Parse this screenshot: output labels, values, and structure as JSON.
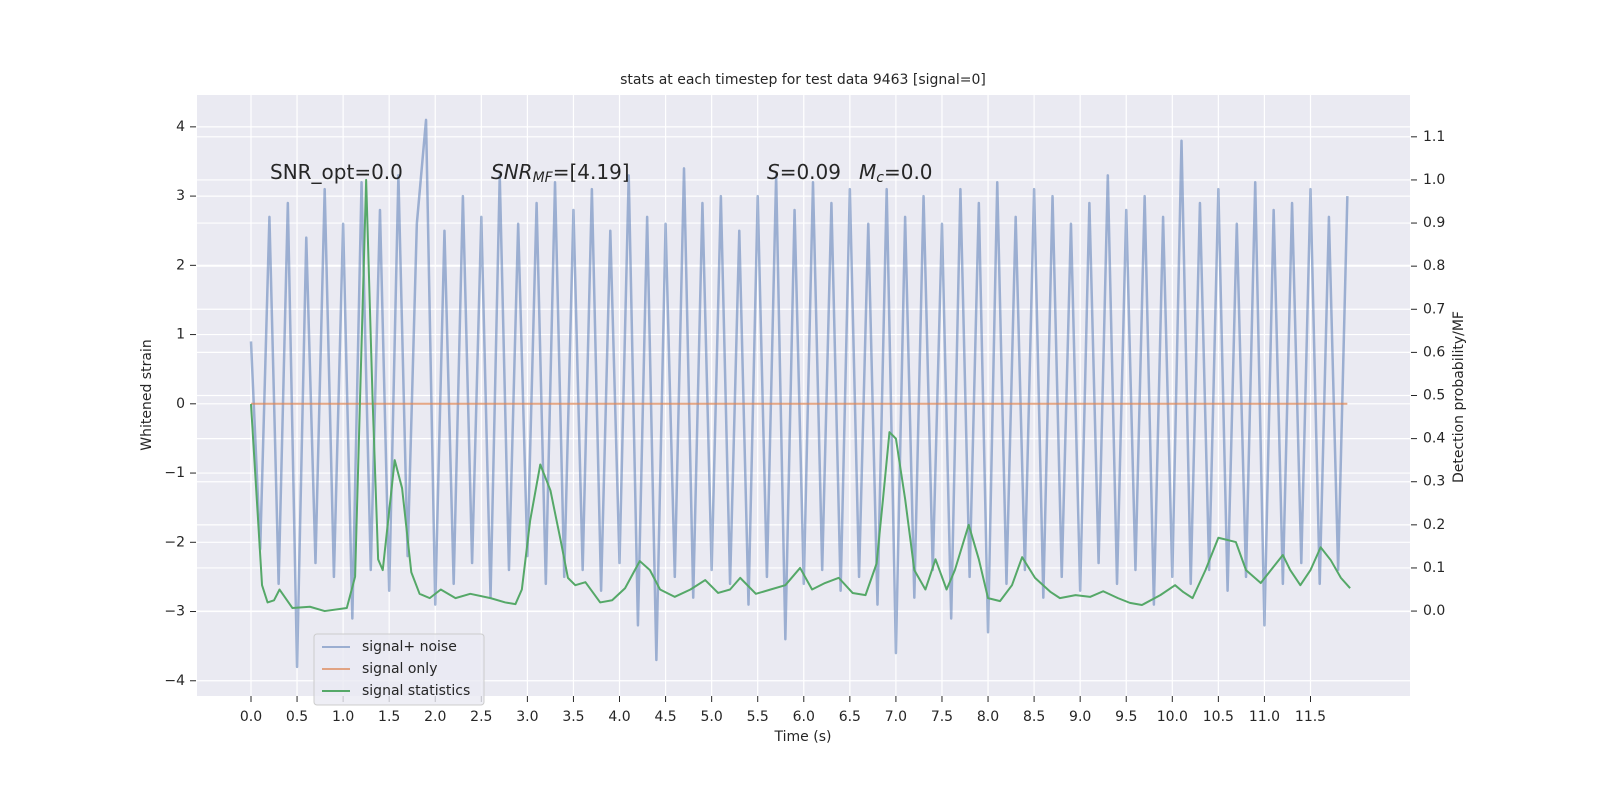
{
  "chart_data": {
    "type": "line",
    "title": "stats at each timestep for test data 9463 [signal=0]",
    "xlabel": "Time (s)",
    "ylabel": "Whitened strain",
    "y2label": "Detection probability/MF",
    "annotations": [
      {
        "text": "SNR_opt=0.0"
      },
      {
        "text": "SNR",
        "sub": "MF",
        "after": "=[4.19]"
      },
      {
        "text": "S",
        "after": "=0.09"
      },
      {
        "text": "M",
        "sub": "c",
        "after": "=0.0"
      }
    ],
    "xlim": [
      -0.586,
      12.58
    ],
    "ylim": [
      -4.22,
      4.46
    ],
    "y2lim": [
      -0.197,
      1.197
    ],
    "xticks": [
      {
        "value": 0,
        "label": "0.0"
      },
      0.5,
      {
        "value": 1,
        "label": "1.0"
      },
      1.5,
      {
        "value": 2,
        "label": "2.0"
      },
      2.5,
      {
        "value": 3,
        "label": "3.0"
      },
      3.5,
      {
        "value": 4,
        "label": "4.0"
      },
      4.5,
      {
        "value": 5,
        "label": "5.0"
      },
      5.5,
      {
        "value": 6,
        "label": "6.0"
      },
      6.5,
      {
        "value": 7,
        "label": "7.0"
      },
      7.5,
      {
        "value": 8,
        "label": "8.0"
      },
      8.5,
      {
        "value": 9,
        "label": "9.0"
      },
      9.5,
      {
        "value": 10,
        "label": "10.0"
      },
      10.5,
      {
        "value": 11,
        "label": "11.0"
      },
      11.5
    ],
    "yticks": [
      {
        "value": -4,
        "label": "−4"
      },
      {
        "value": -3,
        "label": "−3"
      },
      {
        "value": -2,
        "label": "−2"
      },
      {
        "value": -1,
        "label": "−1"
      },
      0,
      1,
      2,
      3,
      4
    ],
    "y2ticks": [
      {
        "value": 0,
        "label": "0.0"
      },
      0.1,
      0.2,
      0.3,
      0.4,
      0.5,
      0.6,
      0.7,
      0.8,
      0.9,
      {
        "value": 1,
        "label": "1.0"
      },
      1.1
    ],
    "grid": true,
    "legend_loc": "lower left",
    "series": [
      {
        "name": "signal+ noise",
        "color": "#4c72b0",
        "opacity": 0.5,
        "x": [
          0,
          0.1,
          0.2,
          0.3,
          0.4,
          0.5,
          0.6,
          0.7,
          0.8,
          0.9,
          1,
          1.1,
          1.2,
          1.3,
          1.4,
          1.5,
          1.6,
          1.7,
          1.8,
          1.9,
          2,
          2.1,
          2.2,
          2.3,
          2.4,
          2.5,
          2.6,
          2.7,
          2.8,
          2.9,
          3,
          3.1,
          3.2,
          3.3,
          3.4,
          3.5,
          3.6,
          3.7,
          3.8,
          3.9,
          4,
          4.1,
          4.2,
          4.3,
          4.4,
          4.5,
          4.6,
          4.7,
          4.8,
          4.9,
          5,
          5.1,
          5.2,
          5.3,
          5.4,
          5.5,
          5.6,
          5.7,
          5.8,
          5.9,
          6,
          6.1,
          6.2,
          6.3,
          6.4,
          6.5,
          6.6,
          6.7,
          6.8,
          6.9,
          7,
          7.1,
          7.2,
          7.3,
          7.4,
          7.5,
          7.6,
          7.7,
          7.8,
          7.9,
          8,
          8.1,
          8.2,
          8.3,
          8.4,
          8.5,
          8.6,
          8.7,
          8.8,
          8.9,
          9,
          9.1,
          9.2,
          9.3,
          9.4,
          9.5,
          9.6,
          9.7,
          9.8,
          9.9,
          10,
          10.1,
          10.2,
          10.3,
          10.4,
          10.5,
          10.6,
          10.7,
          10.8,
          10.9,
          11,
          11.1,
          11.2,
          11.3,
          11.4,
          11.5,
          11.6,
          11.7,
          11.8,
          11.9
        ],
        "values": [
          0.9,
          -2.1,
          2.7,
          -2.6,
          2.9,
          -3.8,
          2.4,
          -2.3,
          3.1,
          -2.5,
          2.6,
          -3.1,
          3.2,
          -2.4,
          2.8,
          -2.7,
          3.3,
          -2.2,
          2.6,
          4.1,
          -2.9,
          2.5,
          -2.6,
          3.0,
          -2.3,
          2.7,
          -2.8,
          3.3,
          -2.4,
          2.6,
          -2.2,
          2.9,
          -2.6,
          3.2,
          -2.5,
          2.8,
          -2.4,
          3.1,
          -2.7,
          2.5,
          -2.3,
          3.3,
          -3.2,
          2.7,
          -3.7,
          2.6,
          -2.5,
          3.4,
          -2.8,
          2.9,
          -2.4,
          3.0,
          -2.6,
          2.5,
          -2.9,
          3.0,
          -2.5,
          3.3,
          -3.4,
          2.8,
          -2.6,
          3.2,
          -2.4,
          2.9,
          -2.7,
          3.1,
          -2.5,
          2.6,
          -2.9,
          3.1,
          -3.6,
          2.7,
          -2.8,
          3.0,
          -2.4,
          2.6,
          -3.1,
          3.1,
          -2.5,
          2.9,
          -3.3,
          3.2,
          -2.6,
          2.7,
          -2.4,
          3.1,
          -2.8,
          3.0,
          -2.5,
          2.6,
          -2.7,
          2.9,
          -2.3,
          3.3,
          -2.6,
          2.8,
          -2.4,
          3.0,
          -2.9,
          2.7,
          -2.5,
          3.8,
          -2.6,
          2.9,
          -2.4,
          3.1,
          -2.7,
          2.6,
          -2.5,
          3.2,
          -3.2,
          2.8,
          -2.6,
          2.9,
          -2.3,
          3.1,
          -2.6,
          2.7,
          -2.4,
          3.0
        ]
      },
      {
        "name": "signal only",
        "color": "#dd8452",
        "opacity": 0.7,
        "x": [
          0,
          11.9
        ],
        "values": [
          0,
          0
        ]
      },
      {
        "name": "signal statistics",
        "color": "#55a868",
        "opacity": 1,
        "axis": "y2",
        "x": [
          0,
          0.12,
          0.18,
          0.25,
          0.31,
          0.45,
          0.64,
          0.8,
          1.04,
          1.13,
          1.25,
          1.32,
          1.38,
          1.43,
          1.56,
          1.64,
          1.74,
          1.83,
          1.94,
          2.06,
          2.22,
          2.38,
          2.6,
          2.76,
          2.87,
          2.94,
          3.03,
          3.14,
          3.25,
          3.36,
          3.44,
          3.52,
          3.63,
          3.79,
          3.92,
          4.06,
          4.22,
          4.33,
          4.44,
          4.6,
          4.77,
          4.93,
          5.07,
          5.2,
          5.31,
          5.48,
          5.64,
          5.8,
          5.96,
          6.09,
          6.23,
          6.38,
          6.53,
          6.67,
          6.79,
          6.86,
          6.93,
          7.0,
          7.1,
          7.2,
          7.32,
          7.43,
          7.55,
          7.64,
          7.79,
          7.9,
          8.0,
          8.13,
          8.26,
          8.37,
          8.51,
          8.68,
          8.78,
          8.95,
          9.11,
          9.25,
          9.41,
          9.54,
          9.67,
          9.87,
          10.03,
          10.12,
          10.22,
          10.36,
          10.5,
          10.69,
          10.8,
          10.96,
          11.07,
          11.2,
          11.28,
          11.39,
          11.5,
          11.61,
          11.72,
          11.83,
          11.93
        ],
        "values": [
          0.48,
          0.06,
          0.02,
          0.025,
          0.05,
          0.007,
          0.01,
          0.0,
          0.007,
          0.08,
          1.0,
          0.49,
          0.12,
          0.095,
          0.35,
          0.285,
          0.09,
          0.04,
          0.03,
          0.05,
          0.03,
          0.04,
          0.03,
          0.02,
          0.016,
          0.05,
          0.21,
          0.34,
          0.28,
          0.165,
          0.077,
          0.06,
          0.067,
          0.02,
          0.025,
          0.053,
          0.116,
          0.095,
          0.05,
          0.033,
          0.05,
          0.072,
          0.042,
          0.05,
          0.077,
          0.04,
          0.05,
          0.06,
          0.1,
          0.05,
          0.065,
          0.077,
          0.042,
          0.037,
          0.11,
          0.26,
          0.415,
          0.4,
          0.26,
          0.095,
          0.05,
          0.12,
          0.05,
          0.095,
          0.2,
          0.12,
          0.03,
          0.023,
          0.06,
          0.125,
          0.077,
          0.044,
          0.03,
          0.037,
          0.033,
          0.046,
          0.03,
          0.019,
          0.014,
          0.037,
          0.06,
          0.044,
          0.03,
          0.095,
          0.17,
          0.16,
          0.095,
          0.065,
          0.095,
          0.13,
          0.095,
          0.06,
          0.095,
          0.148,
          0.118,
          0.077,
          0.053
        ]
      }
    ]
  }
}
